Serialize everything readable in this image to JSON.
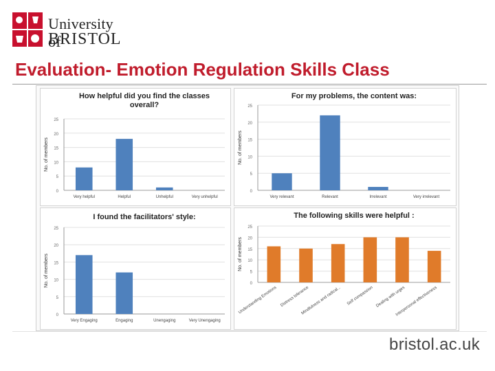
{
  "header": {
    "logo_line1": "University of",
    "logo_line2": "BRISTOL",
    "title": "Evaluation- Emotion Regulation Skills Class"
  },
  "footer": {
    "url": "bristol.ac.uk"
  },
  "colors": {
    "title_red": "#c01c2c",
    "bar_blue": "#4f81bd",
    "bar_orange": "#e07b2a",
    "logo_red": "#c8102e"
  },
  "chart_data": [
    {
      "type": "bar",
      "title": "How helpful did you find the classes overall?",
      "ylabel": "No. of members",
      "categories": [
        "Very helpful",
        "Helpful",
        "Unhelpful",
        "Very unhelpful"
      ],
      "values": [
        8,
        18,
        1,
        0
      ],
      "ylim": [
        0,
        25
      ],
      "yticks": [
        0,
        5,
        10,
        15,
        20,
        25
      ],
      "grid": true,
      "color": "#4f81bd"
    },
    {
      "type": "bar",
      "title": "For my problems, the content was:",
      "ylabel": "No. of members",
      "categories": [
        "Very relevant",
        "Relevant",
        "Irrelevant",
        "Very irrelevant"
      ],
      "values": [
        5,
        22,
        1,
        0
      ],
      "ylim": [
        0,
        25
      ],
      "yticks": [
        0,
        5,
        10,
        15,
        20,
        25
      ],
      "grid": true,
      "color": "#4f81bd"
    },
    {
      "type": "bar",
      "title": "I found the facilitators' style:",
      "ylabel": "No. of members",
      "categories": [
        "Very Engaging",
        "Engaging",
        "Unengaging",
        "Very Unengaging"
      ],
      "values": [
        17,
        12,
        0,
        0
      ],
      "ylim": [
        0,
        25
      ],
      "yticks": [
        0,
        5,
        10,
        15,
        20,
        25
      ],
      "grid": true,
      "color": "#4f81bd"
    },
    {
      "type": "bar",
      "title": "The following skills were helpful :",
      "ylabel": "No. of members",
      "categories": [
        "Understanding Emotions",
        "Distress tolerance",
        "Mindfulness and radical...",
        "Self compassion",
        "Dealing with urges",
        "Interpersonal effectiveness"
      ],
      "values": [
        16,
        15,
        17,
        20,
        20,
        14
      ],
      "ylim": [
        0,
        25
      ],
      "yticks": [
        0,
        5,
        10,
        15,
        20,
        25
      ],
      "grid": true,
      "color": "#e07b2a"
    }
  ]
}
